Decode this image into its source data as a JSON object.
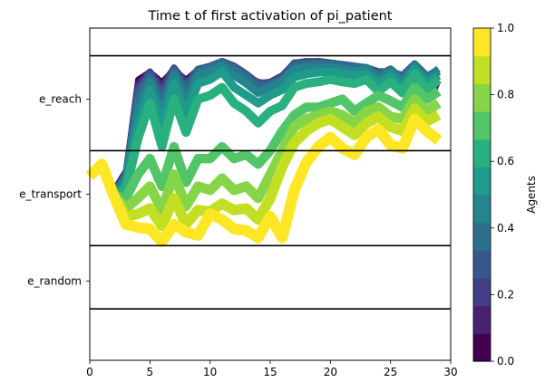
{
  "chart_data": {
    "type": "line",
    "title": "Time t of first activation of pi_patient",
    "xlabel": "",
    "ylabel": "",
    "xlim": [
      0,
      30
    ],
    "x_ticks": [
      0,
      5,
      10,
      15,
      20,
      25,
      30
    ],
    "y_category_ticks": [
      {
        "label": "e_reach",
        "value": 2.2
      },
      {
        "label": "e_transport",
        "value": 1.0
      },
      {
        "label": "e_random",
        "value": -0.1
      }
    ],
    "ylim": [
      -1.1,
      3.1
    ],
    "reference_lines_y": [
      2.75,
      1.55,
      0.35,
      -0.45
    ],
    "grid": false,
    "x": [
      0,
      1,
      2,
      3,
      4,
      5,
      6,
      7,
      8,
      9,
      10,
      11,
      12,
      13,
      14,
      15,
      16,
      17,
      18,
      19,
      20,
      21,
      22,
      23,
      24,
      25,
      26,
      27,
      28,
      29
    ],
    "colorbar": {
      "label": "Agents",
      "range": [
        0,
        1
      ],
      "ticks": [
        0.0,
        0.2,
        0.4,
        0.6,
        0.8,
        1.0
      ],
      "tick_labels": [
        "0.0",
        "0.2",
        "0.4",
        "0.6",
        "0.8",
        "1.0"
      ],
      "levels": 12,
      "colors": [
        "#440154",
        "#482173",
        "#433e85",
        "#38588c",
        "#2d708e",
        "#25858e",
        "#1e9b8a",
        "#2ab07f",
        "#52c569",
        "#86d549",
        "#c2df23",
        "#fde725"
      ]
    },
    "series": [
      {
        "level": 0.04,
        "values": [
          1.23,
          1.38,
          1.05,
          1.3,
          2.45,
          2.55,
          2.42,
          2.58,
          2.45,
          2.58,
          2.62,
          2.65,
          2.58,
          2.48,
          2.4,
          2.38,
          2.48,
          2.62,
          2.65,
          2.65,
          2.62,
          2.62,
          2.58,
          2.58,
          2.52,
          2.52,
          2.45,
          2.4,
          2.42,
          2.35
        ]
      },
      {
        "level": 0.13,
        "values": [
          1.23,
          1.38,
          1.04,
          1.28,
          2.4,
          2.55,
          2.38,
          2.6,
          2.42,
          2.58,
          2.62,
          2.66,
          2.6,
          2.5,
          2.42,
          2.4,
          2.5,
          2.64,
          2.66,
          2.66,
          2.64,
          2.62,
          2.58,
          2.58,
          2.52,
          2.5,
          2.45,
          2.42,
          2.4,
          2.38
        ]
      },
      {
        "level": 0.21,
        "values": [
          1.23,
          1.38,
          1.03,
          1.26,
          2.35,
          2.55,
          2.32,
          2.6,
          2.4,
          2.58,
          2.62,
          2.68,
          2.62,
          2.52,
          2.4,
          2.42,
          2.5,
          2.66,
          2.68,
          2.68,
          2.66,
          2.64,
          2.62,
          2.6,
          2.55,
          2.52,
          2.48,
          2.45,
          2.42,
          2.4
        ]
      },
      {
        "level": 0.29,
        "values": [
          1.23,
          1.38,
          1.02,
          1.25,
          2.3,
          2.52,
          2.25,
          2.58,
          2.35,
          2.58,
          2.62,
          2.68,
          2.62,
          2.52,
          2.4,
          2.4,
          2.48,
          2.66,
          2.66,
          2.68,
          2.66,
          2.64,
          2.62,
          2.6,
          2.55,
          2.55,
          2.5,
          2.65,
          2.5,
          2.55
        ]
      },
      {
        "level": 0.38,
        "values": [
          1.23,
          1.38,
          1.0,
          1.22,
          2.2,
          2.48,
          2.15,
          2.55,
          2.28,
          2.55,
          2.6,
          2.66,
          2.58,
          2.48,
          2.35,
          2.38,
          2.45,
          2.62,
          2.64,
          2.64,
          2.64,
          2.62,
          2.6,
          2.6,
          2.5,
          2.58,
          2.45,
          2.64,
          2.48,
          2.58
        ]
      },
      {
        "level": 0.46,
        "values": [
          1.23,
          1.38,
          1.0,
          1.18,
          2.05,
          2.42,
          2.0,
          2.5,
          2.15,
          2.5,
          2.55,
          2.62,
          2.5,
          2.4,
          2.28,
          2.35,
          2.42,
          2.58,
          2.6,
          2.6,
          2.6,
          2.58,
          2.55,
          2.58,
          2.45,
          2.55,
          2.42,
          2.62,
          2.45,
          2.55
        ]
      },
      {
        "level": 0.54,
        "values": [
          1.23,
          1.38,
          0.98,
          1.12,
          1.85,
          2.32,
          1.85,
          2.4,
          2.0,
          2.4,
          2.45,
          2.55,
          2.35,
          2.25,
          2.15,
          2.25,
          2.32,
          2.48,
          2.52,
          2.54,
          2.55,
          2.52,
          2.5,
          2.52,
          2.4,
          2.5,
          2.35,
          2.58,
          2.4,
          2.5
        ]
      },
      {
        "level": 0.63,
        "values": [
          1.23,
          1.38,
          0.98,
          1.05,
          1.7,
          2.15,
          1.6,
          2.2,
          1.78,
          2.2,
          2.25,
          2.35,
          2.15,
          2.05,
          1.9,
          2.05,
          2.12,
          2.35,
          2.4,
          2.42,
          2.45,
          2.42,
          2.4,
          2.45,
          2.3,
          2.42,
          2.28,
          2.52,
          2.32,
          2.45
        ]
      },
      {
        "level": 0.71,
        "values": [
          1.23,
          1.38,
          0.98,
          0.95,
          1.25,
          1.45,
          1.1,
          1.6,
          1.15,
          1.45,
          1.45,
          1.6,
          1.45,
          1.5,
          1.38,
          1.55,
          1.8,
          2.0,
          2.1,
          2.1,
          2.15,
          2.2,
          2.05,
          2.15,
          2.25,
          2.18,
          2.1,
          2.35,
          2.2,
          2.3
        ]
      },
      {
        "level": 0.79,
        "values": [
          1.23,
          1.38,
          0.98,
          0.82,
          0.95,
          1.1,
          0.8,
          1.25,
          0.85,
          1.1,
          1.05,
          1.2,
          1.05,
          1.1,
          0.95,
          1.25,
          1.55,
          1.85,
          1.95,
          2.0,
          2.05,
          2.0,
          1.9,
          2.05,
          2.1,
          1.98,
          1.95,
          2.2,
          2.05,
          2.15
        ]
      },
      {
        "level": 0.88,
        "values": [
          1.23,
          1.38,
          0.98,
          0.72,
          0.75,
          0.82,
          0.6,
          0.95,
          0.62,
          0.8,
          0.78,
          0.88,
          0.8,
          0.82,
          0.68,
          0.95,
          1.35,
          1.65,
          1.8,
          1.9,
          1.95,
          1.85,
          1.75,
          1.9,
          1.98,
          1.85,
          1.8,
          2.08,
          1.92,
          2.0
        ]
      },
      {
        "level": 0.96,
        "values": [
          1.23,
          1.38,
          0.98,
          0.62,
          0.58,
          0.56,
          0.4,
          0.62,
          0.52,
          0.48,
          0.75,
          0.68,
          0.56,
          0.54,
          0.45,
          0.72,
          0.45,
          1.05,
          1.4,
          1.6,
          1.72,
          1.58,
          1.5,
          1.72,
          1.82,
          1.62,
          1.58,
          1.95,
          1.8,
          1.68
        ]
      }
    ]
  }
}
